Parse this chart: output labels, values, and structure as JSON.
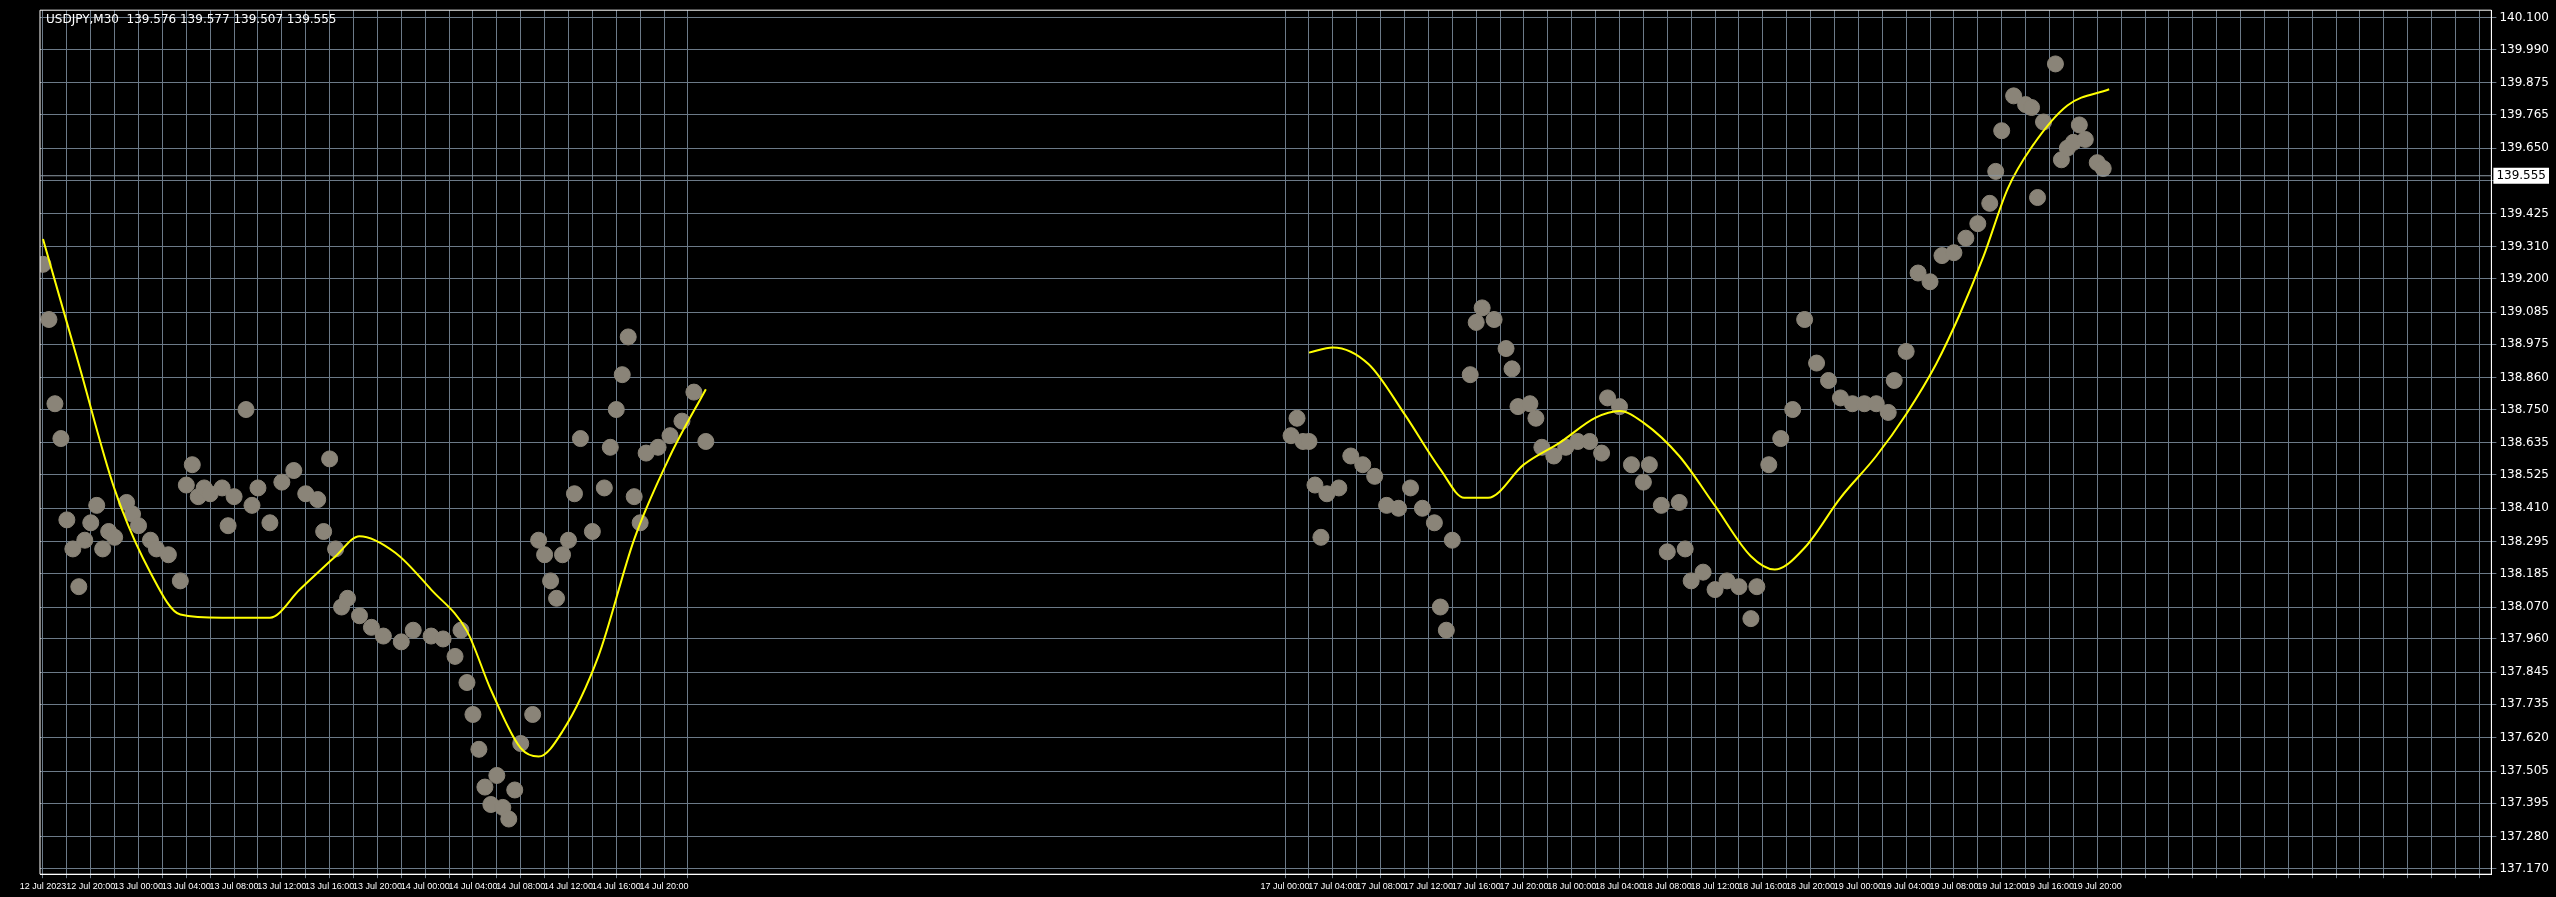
{
  "chart_data": {
    "type": "scatter",
    "title": "USDJPY,M30  139.576 139.577 139.507 139.555",
    "grid": true,
    "legend": false,
    "xlim": [
      "2023-07-12T15:45",
      "2023-07-21T05:00"
    ],
    "ylim": [
      137.15,
      140.125
    ],
    "xticks": [
      {
        "value": "2023-07-12T16:00",
        "label": "12 Jul 2023"
      },
      {
        "value": "2023-07-12T18:00",
        "label": null
      },
      {
        "value": "2023-07-12T20:00",
        "label": "12 Jul 20:00"
      },
      {
        "value": "2023-07-12T22:00",
        "label": null
      },
      {
        "value": "2023-07-13T00:00",
        "label": "13 Jul 00:00"
      },
      {
        "value": "2023-07-13T02:00",
        "label": null
      },
      {
        "value": "2023-07-13T04:00",
        "label": "13 Jul 04:00"
      },
      {
        "value": "2023-07-13T06:00",
        "label": null
      },
      {
        "value": "2023-07-13T08:00",
        "label": "13 Jul 08:00"
      },
      {
        "value": "2023-07-13T10:00",
        "label": null
      },
      {
        "value": "2023-07-13T12:00",
        "label": "13 Jul 12:00"
      },
      {
        "value": "2023-07-13T14:00",
        "label": null
      },
      {
        "value": "2023-07-13T16:00",
        "label": "13 Jul 16:00"
      },
      {
        "value": "2023-07-13T18:00",
        "label": null
      },
      {
        "value": "2023-07-13T20:00",
        "label": "13 Jul 20:00"
      },
      {
        "value": "2023-07-13T22:00",
        "label": null
      },
      {
        "value": "2023-07-14T00:00",
        "label": "14 Jul 00:00"
      },
      {
        "value": "2023-07-14T02:00",
        "label": null
      },
      {
        "value": "2023-07-14T04:00",
        "label": "14 Jul 04:00"
      },
      {
        "value": "2023-07-14T06:00",
        "label": null
      },
      {
        "value": "2023-07-14T08:00",
        "label": "14 Jul 08:00"
      },
      {
        "value": "2023-07-14T10:00",
        "label": null
      },
      {
        "value": "2023-07-14T12:00",
        "label": "14 Jul 12:00"
      },
      {
        "value": "2023-07-14T14:00",
        "label": null
      },
      {
        "value": "2023-07-14T16:00",
        "label": "14 Jul 16:00"
      },
      {
        "value": "2023-07-14T18:00",
        "label": null
      },
      {
        "value": "2023-07-14T20:00",
        "label": "14 Jul 20:00"
      },
      {
        "value": "2023-07-14T22:00",
        "label": null
      },
      {
        "value": "2023-07-17T00:00",
        "label": "17 Jul 00:00"
      },
      {
        "value": "2023-07-17T02:00",
        "label": null
      },
      {
        "value": "2023-07-17T04:00",
        "label": "17 Jul 04:00"
      },
      {
        "value": "2023-07-17T06:00",
        "label": null
      },
      {
        "value": "2023-07-17T08:00",
        "label": "17 Jul 08:00"
      },
      {
        "value": "2023-07-17T10:00",
        "label": null
      },
      {
        "value": "2023-07-17T12:00",
        "label": "17 Jul 12:00"
      },
      {
        "value": "2023-07-17T14:00",
        "label": null
      },
      {
        "value": "2023-07-17T16:00",
        "label": "17 Jul 16:00"
      },
      {
        "value": "2023-07-17T18:00",
        "label": null
      },
      {
        "value": "2023-07-17T20:00",
        "label": "17 Jul 20:00"
      },
      {
        "value": "2023-07-17T22:00",
        "label": null
      },
      {
        "value": "2023-07-18T00:00",
        "label": "18 Jul 00:00"
      },
      {
        "value": "2023-07-18T02:00",
        "label": null
      },
      {
        "value": "2023-07-18T04:00",
        "label": "18 Jul 04:00"
      },
      {
        "value": "2023-07-18T06:00",
        "label": null
      },
      {
        "value": "2023-07-18T08:00",
        "label": "18 Jul 08:00"
      },
      {
        "value": "2023-07-18T10:00",
        "label": null
      },
      {
        "value": "2023-07-18T12:00",
        "label": "18 Jul 12:00"
      },
      {
        "value": "2023-07-18T14:00",
        "label": null
      },
      {
        "value": "2023-07-18T16:00",
        "label": "18 Jul 16:00"
      },
      {
        "value": "2023-07-18T18:00",
        "label": null
      },
      {
        "value": "2023-07-18T20:00",
        "label": "18 Jul 20:00"
      },
      {
        "value": "2023-07-18T22:00",
        "label": null
      },
      {
        "value": "2023-07-19T00:00",
        "label": "19 Jul 00:00"
      },
      {
        "value": "2023-07-19T02:00",
        "label": null
      },
      {
        "value": "2023-07-19T04:00",
        "label": "19 Jul 04:00"
      },
      {
        "value": "2023-07-19T06:00",
        "label": null
      },
      {
        "value": "2023-07-19T08:00",
        "label": "19 Jul 08:00"
      },
      {
        "value": "2023-07-19T10:00",
        "label": null
      },
      {
        "value": "2023-07-19T12:00",
        "label": "19 Jul 12:00"
      },
      {
        "value": "2023-07-19T14:00",
        "label": null
      },
      {
        "value": "2023-07-19T16:00",
        "label": "19 Jul 16:00"
      },
      {
        "value": "2023-07-19T18:00",
        "label": null
      },
      {
        "value": "2023-07-19T20:00",
        "label": "19 Jul 20:00"
      },
      {
        "value": "2023-07-19T22:00",
        "label": null
      },
      {
        "value": "2023-07-20T00:00",
        "label": null
      },
      {
        "value": "2023-07-20T02:00",
        "label": null
      },
      {
        "value": "2023-07-20T04:00",
        "label": null
      },
      {
        "value": "2023-07-20T06:00",
        "label": null
      },
      {
        "value": "2023-07-20T08:00",
        "label": null
      },
      {
        "value": "2023-07-20T10:00",
        "label": null
      },
      {
        "value": "2023-07-20T12:00",
        "label": null
      },
      {
        "value": "2023-07-20T14:00",
        "label": null
      },
      {
        "value": "2023-07-20T16:00",
        "label": null
      },
      {
        "value": "2023-07-20T18:00",
        "label": null
      },
      {
        "value": "2023-07-20T20:00",
        "label": null
      },
      {
        "value": "2023-07-20T22:00",
        "label": null
      },
      {
        "value": "2023-07-21T00:00",
        "label": null
      },
      {
        "value": "2023-07-21T02:00",
        "label": null
      },
      {
        "value": "2023-07-21T04:00",
        "label": null
      }
    ],
    "yticks": [
      {
        "value": 140.1,
        "label": "140.100"
      },
      {
        "value": 139.99,
        "label": "139.990"
      },
      {
        "value": 139.875,
        "label": "139.875"
      },
      {
        "value": 139.765,
        "label": "139.765"
      },
      {
        "value": 139.65,
        "label": "139.650"
      },
      {
        "value": 139.54,
        "label": null
      },
      {
        "value": 139.425,
        "label": "139.425"
      },
      {
        "value": 139.31,
        "label": "139.310"
      },
      {
        "value": 139.2,
        "label": "139.200"
      },
      {
        "value": 139.085,
        "label": "139.085"
      },
      {
        "value": 138.975,
        "label": "138.975"
      },
      {
        "value": 138.86,
        "label": "138.860"
      },
      {
        "value": 138.75,
        "label": "138.750"
      },
      {
        "value": 138.635,
        "label": "138.635"
      },
      {
        "value": 138.525,
        "label": "138.525"
      },
      {
        "value": 138.41,
        "label": "138.410"
      },
      {
        "value": 138.295,
        "label": "138.295"
      },
      {
        "value": 138.185,
        "label": "138.185"
      },
      {
        "value": 138.07,
        "label": "138.070"
      },
      {
        "value": 137.96,
        "label": "137.960"
      },
      {
        "value": 137.845,
        "label": "137.845"
      },
      {
        "value": 137.735,
        "label": "137.735"
      },
      {
        "value": 137.62,
        "label": "137.620"
      },
      {
        "value": 137.505,
        "label": "137.505"
      },
      {
        "value": 137.395,
        "label": "137.395"
      },
      {
        "value": 137.28,
        "label": "137.280"
      },
      {
        "value": 137.17,
        "label": "137.170"
      }
    ],
    "ref_lines": [
      {
        "axis": "y",
        "value": 139.555,
        "label": "139.555",
        "color": "#8e99a4"
      }
    ],
    "series": [
      {
        "type": "line",
        "color": "#ffff00",
        "x": [
          "2023-07-12T16:00",
          "2023-07-12T19:00",
          "2023-07-12T22:00",
          "2023-07-13T01:00",
          "2023-07-13T03:30",
          "2023-07-13T07:00",
          "2023-07-13T11:00",
          "2023-07-13T13:30",
          "2023-07-13T16:30",
          "2023-07-13T18:30",
          "2023-07-13T21:30",
          "2023-07-14T00:30",
          "2023-07-14T03:30",
          "2023-07-14T05:30",
          "2023-07-14T08:00",
          "2023-07-14T09:30",
          "2023-07-14T11:30",
          "2023-07-14T14:30",
          "2023-07-14T17:30",
          "2023-07-14T20:30",
          "2023-07-14T23:30",
          "2023-07-15T12:00",
          "2023-07-17T02:00",
          "2023-07-17T04:00",
          "2023-07-17T07:00",
          "2023-07-17T10:00",
          "2023-07-17T13:00",
          "2023-07-17T15:00",
          "2023-07-17T17:00",
          "2023-07-17T20:00",
          "2023-07-17T23:00",
          "2023-07-18T02:00",
          "2023-07-18T04:00",
          "2023-07-18T06:00",
          "2023-07-18T09:00",
          "2023-07-18T12:00",
          "2023-07-18T15:00",
          "2023-07-18T17:00",
          "2023-07-18T19:30",
          "2023-07-18T22:30",
          "2023-07-19T01:30",
          "2023-07-19T04:00",
          "2023-07-19T06:30",
          "2023-07-19T08:30",
          "2023-07-19T10:30",
          "2023-07-19T12:30",
          "2023-07-19T14:30",
          "2023-07-19T17:30",
          "2023-07-19T21:00"
        ],
        "values": [
          139.337,
          138.906,
          138.475,
          138.188,
          138.044,
          138.033,
          138.033,
          138.13,
          138.245,
          138.314,
          138.257,
          138.13,
          137.987,
          137.785,
          137.584,
          137.555,
          137.642,
          137.9,
          138.303,
          138.59,
          138.82,
          null,
          138.946,
          138.964,
          138.906,
          138.734,
          138.544,
          138.446,
          138.446,
          138.561,
          138.636,
          138.722,
          138.745,
          138.705,
          138.59,
          138.418,
          138.245,
          138.199,
          138.274,
          138.446,
          138.59,
          138.734,
          138.906,
          139.079,
          139.28,
          139.51,
          139.653,
          139.797,
          139.853
        ]
      },
      {
        "color": "#8a8478",
        "marker": "circle",
        "x": [
          "2023-07-12T16:00",
          "2023-07-12T16:30",
          "2023-07-12T17:00",
          "2023-07-12T17:30",
          "2023-07-12T18:00",
          "2023-07-12T18:30",
          "2023-07-12T19:00",
          "2023-07-12T19:30",
          "2023-07-12T20:00",
          "2023-07-12T20:30",
          "2023-07-12T21:00",
          "2023-07-12T21:30",
          "2023-07-12T22:00",
          "2023-07-12T23:00",
          "2023-07-12T23:30",
          "2023-07-13T00:00",
          "2023-07-13T01:00",
          "2023-07-13T01:30",
          "2023-07-13T02:30",
          "2023-07-13T03:30",
          "2023-07-13T04:00",
          "2023-07-13T04:30",
          "2023-07-13T05:00",
          "2023-07-13T05:30",
          "2023-07-13T06:00",
          "2023-07-13T07:00",
          "2023-07-13T07:30",
          "2023-07-13T08:00",
          "2023-07-13T09:00",
          "2023-07-13T09:30",
          "2023-07-13T10:00",
          "2023-07-13T11:00",
          "2023-07-13T12:00",
          "2023-07-13T13:00",
          "2023-07-13T14:00",
          "2023-07-13T15:00",
          "2023-07-13T15:30",
          "2023-07-13T16:00",
          "2023-07-13T16:30",
          "2023-07-13T17:00",
          "2023-07-13T17:30",
          "2023-07-13T18:30",
          "2023-07-13T19:30",
          "2023-07-13T20:30",
          "2023-07-13T22:00",
          "2023-07-13T23:00",
          "2023-07-14T00:30",
          "2023-07-14T01:30",
          "2023-07-14T02:30",
          "2023-07-14T03:00",
          "2023-07-14T03:30",
          "2023-07-14T04:00",
          "2023-07-14T04:30",
          "2023-07-14T05:00",
          "2023-07-14T05:30",
          "2023-07-14T06:00",
          "2023-07-14T06:30",
          "2023-07-14T07:00",
          "2023-07-14T07:30",
          "2023-07-14T08:00",
          "2023-07-14T09:00",
          "2023-07-14T09:30",
          "2023-07-14T10:00",
          "2023-07-14T10:30",
          "2023-07-14T11:00",
          "2023-07-14T11:30",
          "2023-07-14T12:00",
          "2023-07-14T12:30",
          "2023-07-14T13:00",
          "2023-07-14T14:00",
          "2023-07-14T15:00",
          "2023-07-14T15:30",
          "2023-07-14T16:00",
          "2023-07-14T16:30",
          "2023-07-14T17:00",
          "2023-07-14T17:30",
          "2023-07-14T18:00",
          "2023-07-14T18:30",
          "2023-07-14T19:30",
          "2023-07-14T20:30",
          "2023-07-14T21:30",
          "2023-07-14T22:30",
          "2023-07-14T23:30",
          "2023-07-17T00:30",
          "2023-07-17T01:00",
          "2023-07-17T01:30",
          "2023-07-17T02:00",
          "2023-07-17T02:30",
          "2023-07-17T03:00",
          "2023-07-17T03:30",
          "2023-07-17T04:30",
          "2023-07-17T05:30",
          "2023-07-17T06:30",
          "2023-07-17T07:30",
          "2023-07-17T08:30",
          "2023-07-17T09:30",
          "2023-07-17T10:30",
          "2023-07-17T11:30",
          "2023-07-17T12:30",
          "2023-07-17T13:00",
          "2023-07-17T13:30",
          "2023-07-17T14:00",
          "2023-07-17T15:30",
          "2023-07-17T16:00",
          "2023-07-17T16:30",
          "2023-07-17T17:30",
          "2023-07-17T18:30",
          "2023-07-17T19:00",
          "2023-07-17T19:30",
          "2023-07-17T20:30",
          "2023-07-17T21:00",
          "2023-07-17T21:30",
          "2023-07-17T22:30",
          "2023-07-17T23:30",
          "2023-07-18T00:30",
          "2023-07-18T01:30",
          "2023-07-18T02:30",
          "2023-07-18T03:00",
          "2023-07-18T04:00",
          "2023-07-18T05:00",
          "2023-07-18T06:00",
          "2023-07-18T06:30",
          "2023-07-18T07:30",
          "2023-07-18T08:00",
          "2023-07-18T09:00",
          "2023-07-18T09:30",
          "2023-07-18T10:00",
          "2023-07-18T11:00",
          "2023-07-18T12:00",
          "2023-07-18T13:00",
          "2023-07-18T14:00",
          "2023-07-18T15:00",
          "2023-07-18T15:30",
          "2023-07-18T16:30",
          "2023-07-18T17:30",
          "2023-07-18T18:30",
          "2023-07-18T19:30",
          "2023-07-18T20:30",
          "2023-07-18T21:30",
          "2023-07-18T22:30",
          "2023-07-18T23:30",
          "2023-07-19T00:30",
          "2023-07-19T01:30",
          "2023-07-19T02:30",
          "2023-07-19T03:00",
          "2023-07-19T04:00",
          "2023-07-19T05:00",
          "2023-07-19T06:00",
          "2023-07-19T07:00",
          "2023-07-19T08:00",
          "2023-07-19T09:00",
          "2023-07-19T10:00",
          "2023-07-19T11:00",
          "2023-07-19T11:30",
          "2023-07-19T12:00",
          "2023-07-19T13:00",
          "2023-07-19T14:00",
          "2023-07-19T14:30",
          "2023-07-19T15:00",
          "2023-07-19T15:30",
          "2023-07-19T16:30",
          "2023-07-19T17:00",
          "2023-07-19T17:30",
          "2023-07-19T18:00",
          "2023-07-19T18:30",
          "2023-07-19T19:00",
          "2023-07-19T20:00",
          "2023-07-19T20:30"
        ],
        "values": [
          139.25,
          139.06,
          138.77,
          138.65,
          138.37,
          138.27,
          138.14,
          138.3,
          138.36,
          138.42,
          138.27,
          138.33,
          138.31,
          138.43,
          138.39,
          138.35,
          138.3,
          138.27,
          138.25,
          138.16,
          138.49,
          138.56,
          138.45,
          138.48,
          138.46,
          138.48,
          138.35,
          138.45,
          138.75,
          138.42,
          138.48,
          138.36,
          138.5,
          138.54,
          138.46,
          138.44,
          138.33,
          138.58,
          138.27,
          138.07,
          138.1,
          138.04,
          138.0,
          137.97,
          137.95,
          137.99,
          137.97,
          137.96,
          137.9,
          137.99,
          137.81,
          137.7,
          137.58,
          137.45,
          137.39,
          137.49,
          137.38,
          137.34,
          137.44,
          137.6,
          137.7,
          138.3,
          138.25,
          138.16,
          138.1,
          138.25,
          138.3,
          138.46,
          138.65,
          138.33,
          138.48,
          138.62,
          138.75,
          138.87,
          139.0,
          138.45,
          138.36,
          138.6,
          138.62,
          138.66,
          138.71,
          138.81,
          138.64,
          138.66,
          138.72,
          138.64,
          138.64,
          138.49,
          138.31,
          138.46,
          138.48,
          138.59,
          138.56,
          138.52,
          138.42,
          138.41,
          138.48,
          138.41,
          138.36,
          138.07,
          137.99,
          138.3,
          138.87,
          139.05,
          139.1,
          139.06,
          138.96,
          138.89,
          138.76,
          138.77,
          138.72,
          138.62,
          138.59,
          138.62,
          138.64,
          138.64,
          138.6,
          138.79,
          138.76,
          138.56,
          138.5,
          138.56,
          138.42,
          138.26,
          138.43,
          138.27,
          138.16,
          138.19,
          138.13,
          138.16,
          138.14,
          138.03,
          138.14,
          138.56,
          138.65,
          138.75,
          139.06,
          138.91,
          138.85,
          138.79,
          138.77,
          138.77,
          138.77,
          138.74,
          138.85,
          138.95,
          139.22,
          139.19,
          139.28,
          139.29,
          139.34,
          139.39,
          139.46,
          139.57,
          139.71,
          139.83,
          139.8,
          139.79,
          139.48,
          139.74,
          139.94,
          139.61,
          139.65,
          139.67,
          139.73,
          139.68,
          139.6,
          139.58
        ]
      }
    ]
  }
}
